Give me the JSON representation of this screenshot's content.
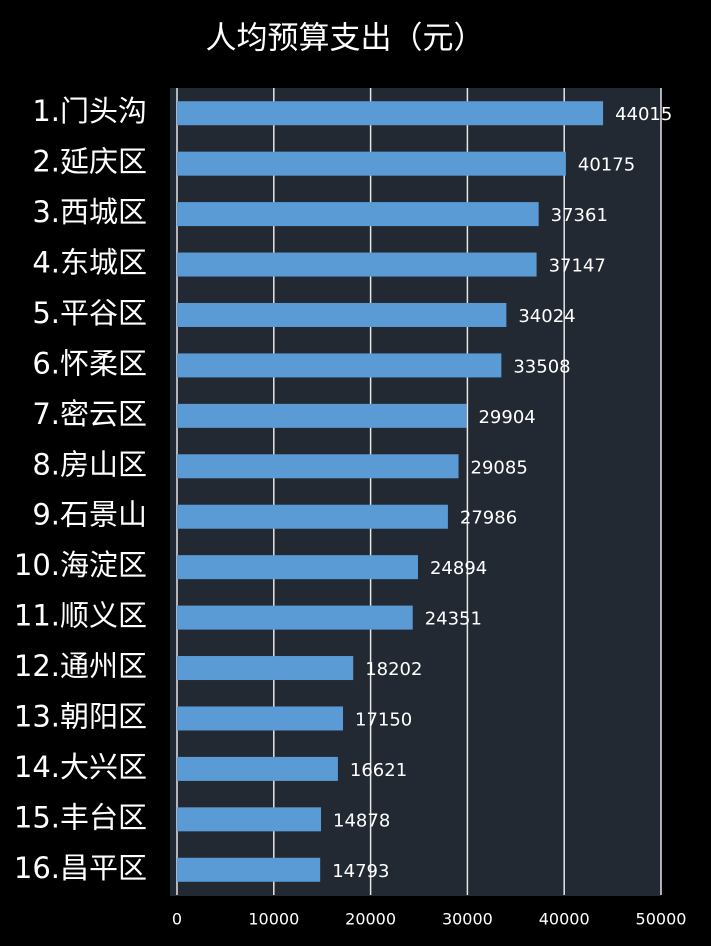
{
  "chart_data": {
    "type": "bar",
    "orientation": "horizontal",
    "title": "人均预算支出（元）",
    "categories": [
      "1.门头沟",
      "2.延庆区",
      "3.西城区",
      "4.东城区",
      "5.平谷区",
      "6.怀柔区",
      "7.密云区",
      "8.房山区",
      "9.石景山",
      "10.海淀区",
      "11.顺义区",
      "12.通州区",
      "13.朝阳区",
      "14.大兴区",
      "15.丰台区",
      "16.昌平区"
    ],
    "values": [
      44015,
      40175,
      37361,
      37147,
      34024,
      33508,
      29904,
      29085,
      27986,
      24894,
      24351,
      18202,
      17150,
      16621,
      14878,
      14793
    ],
    "color": "#5b9bd5",
    "xlim": [
      0,
      50000
    ],
    "xticks": [
      0,
      10000,
      20000,
      30000,
      40000,
      50000
    ],
    "grid": true
  }
}
